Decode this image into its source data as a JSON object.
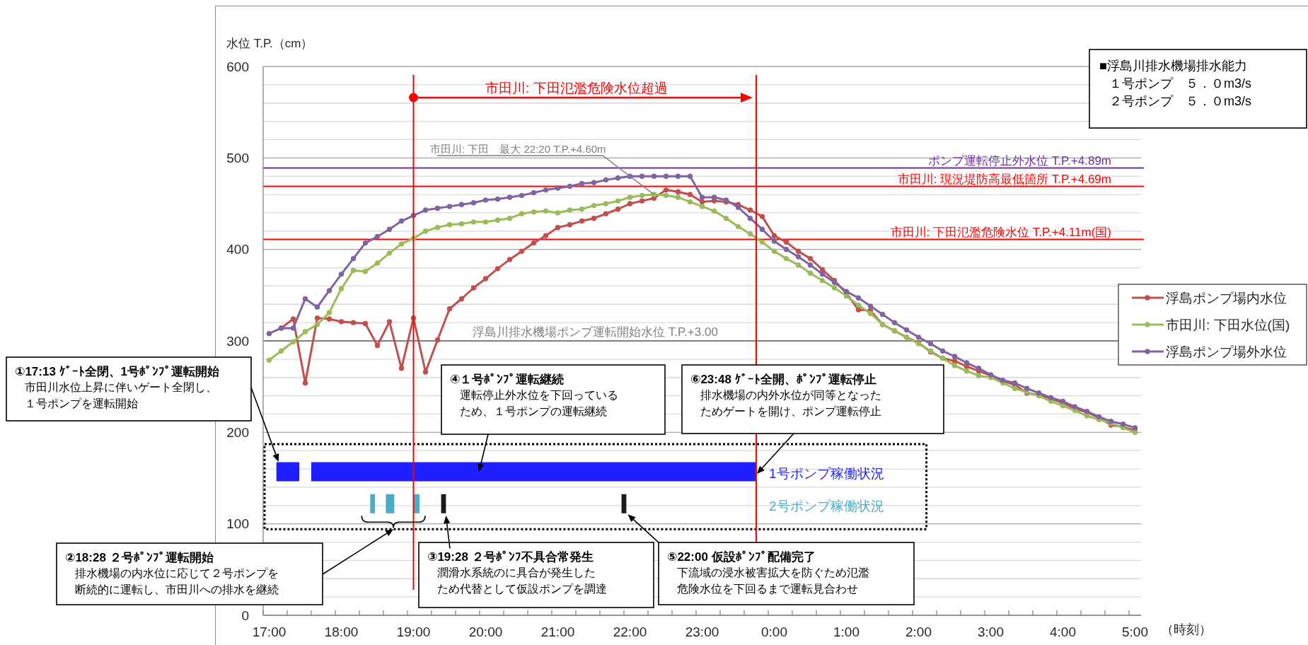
{
  "chart_data": {
    "type": "line",
    "xlabel": "（時刻）",
    "ylabel": "水位 T.P.（cm）",
    "x": [
      "2000-01-01T17:00",
      "2000-01-01T17:10",
      "2000-01-01T17:20",
      "2000-01-01T17:30",
      "2000-01-01T17:40",
      "2000-01-01T17:50",
      "2000-01-01T18:00",
      "2000-01-01T18:10",
      "2000-01-01T18:20",
      "2000-01-01T18:30",
      "2000-01-01T18:40",
      "2000-01-01T18:50",
      "2000-01-01T19:00",
      "2000-01-01T19:10",
      "2000-01-01T19:20",
      "2000-01-01T19:30",
      "2000-01-01T19:40",
      "2000-01-01T19:50",
      "2000-01-01T20:00",
      "2000-01-01T20:10",
      "2000-01-01T20:20",
      "2000-01-01T20:30",
      "2000-01-01T20:40",
      "2000-01-01T20:50",
      "2000-01-01T21:00",
      "2000-01-01T21:10",
      "2000-01-01T21:20",
      "2000-01-01T21:30",
      "2000-01-01T21:40",
      "2000-01-01T21:50",
      "2000-01-01T22:00",
      "2000-01-01T22:10",
      "2000-01-01T22:20",
      "2000-01-01T22:30",
      "2000-01-01T22:40",
      "2000-01-01T22:50",
      "2000-01-01T23:00",
      "2000-01-01T23:10",
      "2000-01-01T23:20",
      "2000-01-01T23:30",
      "2000-01-01T23:40",
      "2000-01-01T23:50",
      "2000-01-02T00:00",
      "2000-01-02T00:10",
      "2000-01-02T00:20",
      "2000-01-02T00:30",
      "2000-01-02T00:40",
      "2000-01-02T00:50",
      "2000-01-02T01:00",
      "2000-01-02T01:10",
      "2000-01-02T01:20",
      "2000-01-02T01:30",
      "2000-01-02T01:40",
      "2000-01-02T01:50",
      "2000-01-02T02:00",
      "2000-01-02T02:10",
      "2000-01-02T02:20",
      "2000-01-02T02:30",
      "2000-01-02T02:40",
      "2000-01-02T02:50",
      "2000-01-02T03:00",
      "2000-01-02T03:10",
      "2000-01-02T03:20",
      "2000-01-02T03:30",
      "2000-01-02T03:40",
      "2000-01-02T03:50",
      "2000-01-02T04:00",
      "2000-01-02T04:10",
      "2000-01-02T04:20",
      "2000-01-02T04:30",
      "2000-01-02T04:40",
      "2000-01-02T04:50",
      "2000-01-02T05:00"
    ],
    "series": [
      {
        "name": "浮島ポンプ場内水位",
        "color": "#c0504d",
        "values": [
          null,
          314,
          324,
          254,
          325,
          324,
          321,
          320,
          319,
          295,
          321,
          270,
          325,
          266,
          301,
          335,
          346,
          358,
          368,
          379,
          389,
          398,
          407,
          415,
          424,
          427,
          431,
          434,
          439,
          444,
          450,
          453,
          456,
          465,
          463,
          460,
          452,
          453,
          452,
          449,
          443,
          436,
          415,
          408,
          398,
          390,
          378,
          366,
          352,
          334,
          333,
          318,
          311,
          304,
          298,
          288,
          281,
          278,
          272,
          267,
          262,
          256,
          252,
          243,
          241,
          237,
          232,
          226,
          222,
          216,
          208,
          206,
          202
        ]
      },
      {
        "name": "市田川: 下田水位(国)",
        "color": "#9bbb59",
        "values": [
          279,
          289,
          299,
          310,
          318,
          331,
          357,
          377,
          376,
          385,
          396,
          406,
          412,
          420,
          424,
          427,
          428,
          430,
          430,
          432,
          434,
          439,
          441,
          442,
          440,
          443,
          444,
          448,
          450,
          453,
          457,
          459,
          460,
          459,
          457,
          452,
          447,
          442,
          434,
          425,
          417,
          408,
          398,
          390,
          383,
          374,
          366,
          358,
          349,
          339,
          330,
          318,
          311,
          304,
          297,
          289,
          281,
          273,
          267,
          262,
          260,
          254,
          248,
          244,
          240,
          234,
          229,
          224,
          218,
          214,
          210,
          205,
          200
        ]
      },
      {
        "name": "浮島ポンプ場外水位",
        "color": "#8064a2",
        "values": [
          308,
          314,
          314,
          346,
          337,
          355,
          373,
          390,
          407,
          414,
          422,
          431,
          437,
          443,
          445,
          447,
          449,
          451,
          454,
          455,
          457,
          459,
          462,
          465,
          467,
          469,
          472,
          473,
          476,
          478,
          480,
          480,
          480,
          480,
          480,
          480,
          457,
          457,
          454,
          446,
          434,
          422,
          409,
          400,
          392,
          383,
          373,
          364,
          354,
          347,
          338,
          329,
          320,
          312,
          304,
          297,
          289,
          283,
          276,
          270,
          263,
          257,
          254,
          248,
          243,
          238,
          234,
          228,
          223,
          217,
          212,
          209,
          205
        ]
      },
      {
        "name": "1号ポンプ稼働状況",
        "color": "#1f1fff",
        "marker": "none",
        "x": [
          "2000-01-01T17:06",
          "2000-01-01T17:25",
          null,
          "2000-01-01T17:35",
          "2000-01-01T23:45"
        ],
        "values": [
          157,
          157,
          null,
          157,
          157
        ]
      },
      {
        "name": "2号ポンプ稼働状況",
        "color": "#4bacc6",
        "marker": "none",
        "x": [
          "2000-01-01T18:24",
          "2000-01-01T18:28",
          null,
          "2000-01-01T18:37",
          "2000-01-01T18:44",
          null,
          "2000-01-01T19:00",
          "2000-01-01T19:05"
        ],
        "values": [
          122,
          122,
          null,
          122,
          122,
          null,
          122,
          122
        ]
      },
      {
        "color": "#1a1a1a",
        "marker": "none",
        "x": [
          "2000-01-01T19:23",
          "2000-01-01T19:27",
          null,
          "2000-01-01T21:53",
          "2000-01-01T21:57"
        ],
        "values": [
          122,
          122,
          null,
          122,
          122
        ]
      }
    ],
    "xlim": [
      "2000-01-01T16:55",
      "2000-01-02T05:05"
    ],
    "xticks": [
      {
        "value": "2000-01-01T17:00",
        "label": "17:00"
      },
      {
        "value": "2000-01-01T18:00",
        "label": "18:00"
      },
      {
        "value": "2000-01-01T19:00",
        "label": "19:00"
      },
      {
        "value": "2000-01-01T20:00",
        "label": "20:00"
      },
      {
        "value": "2000-01-01T21:00",
        "label": "21:00"
      },
      {
        "value": "2000-01-01T22:00",
        "label": "22:00"
      },
      {
        "value": "2000-01-01T23:00",
        "label": "23:00"
      },
      {
        "value": "2000-01-02T00:00",
        "label": "0:00"
      },
      {
        "value": "2000-01-02T01:00",
        "label": "1:00"
      },
      {
        "value": "2000-01-02T02:00",
        "label": "2:00"
      },
      {
        "value": "2000-01-02T03:00",
        "label": "3:00"
      },
      {
        "value": "2000-01-02T04:00",
        "label": "4:00"
      },
      {
        "value": "2000-01-02T05:00",
        "label": "5:00"
      },
      {
        "value": "2000-01-01T16:55",
        "label": null
      },
      {
        "value": "2000-01-01T17:15",
        "label": null
      },
      {
        "value": "2000-01-01T17:35",
        "label": null
      },
      {
        "value": "2000-01-01T17:55",
        "label": null
      },
      {
        "value": "2000-01-01T18:15",
        "label": null
      },
      {
        "value": "2000-01-01T18:35",
        "label": null
      },
      {
        "value": "2000-01-01T18:55",
        "label": null
      },
      {
        "value": "2000-01-01T19:15",
        "label": null
      },
      {
        "value": "2000-01-01T19:35",
        "label": null
      },
      {
        "value": "2000-01-01T19:55",
        "label": null
      },
      {
        "value": "2000-01-01T20:15",
        "label": null
      },
      {
        "value": "2000-01-01T20:35",
        "label": null
      },
      {
        "value": "2000-01-01T20:55",
        "label": null
      },
      {
        "value": "2000-01-01T21:15",
        "label": null
      },
      {
        "value": "2000-01-01T21:35",
        "label": null
      },
      {
        "value": "2000-01-01T21:55",
        "label": null
      },
      {
        "value": "2000-01-01T22:15",
        "label": null
      },
      {
        "value": "2000-01-01T22:35",
        "label": null
      },
      {
        "value": "2000-01-01T22:55",
        "label": null
      },
      {
        "value": "2000-01-01T23:15",
        "label": null
      },
      {
        "value": "2000-01-01T23:35",
        "label": null
      },
      {
        "value": "2000-01-01T23:55",
        "label": null
      },
      {
        "value": "2000-01-02T00:15",
        "label": null
      },
      {
        "value": "2000-01-02T00:35",
        "label": null
      },
      {
        "value": "2000-01-02T00:55",
        "label": null
      },
      {
        "value": "2000-01-02T01:15",
        "label": null
      },
      {
        "value": "2000-01-02T01:35",
        "label": null
      },
      {
        "value": "2000-01-02T01:55",
        "label": null
      },
      {
        "value": "2000-01-02T02:15",
        "label": null
      },
      {
        "value": "2000-01-02T02:35",
        "label": null
      },
      {
        "value": "2000-01-02T02:55",
        "label": null
      },
      {
        "value": "2000-01-02T03:15",
        "label": null
      },
      {
        "value": "2000-01-02T03:35",
        "label": null
      },
      {
        "value": "2000-01-02T03:55",
        "label": null
      },
      {
        "value": "2000-01-02T04:15",
        "label": null
      },
      {
        "value": "2000-01-02T04:35",
        "label": null
      },
      {
        "value": "2000-01-02T04:55",
        "label": null
      }
    ],
    "ylim": [
      0,
      600
    ],
    "yticks": [
      0,
      {
        "value": 20,
        "label": null
      },
      {
        "value": 40,
        "label": null
      },
      {
        "value": 60,
        "label": null
      },
      {
        "value": 80,
        "label": null
      },
      100,
      {
        "value": 120,
        "label": null
      },
      {
        "value": 140,
        "label": null
      },
      {
        "value": 160,
        "label": null
      },
      {
        "value": 180,
        "label": null
      },
      200,
      {
        "value": 220,
        "label": null
      },
      {
        "value": 240,
        "label": null
      },
      {
        "value": 260,
        "label": null
      },
      {
        "value": 280,
        "label": null
      },
      300,
      {
        "value": 320,
        "label": null
      },
      {
        "value": 340,
        "label": null
      },
      {
        "value": 360,
        "label": null
      },
      {
        "value": 380,
        "label": null
      },
      400,
      {
        "value": 420,
        "label": null
      },
      {
        "value": 440,
        "label": null
      },
      {
        "value": 460,
        "label": null
      },
      {
        "value": 480,
        "label": null
      },
      500,
      {
        "value": 520,
        "label": null
      },
      {
        "value": 540,
        "label": null
      },
      {
        "value": 560,
        "label": null
      },
      {
        "value": 580,
        "label": null
      },
      600
    ],
    "ref_lines": [
      {
        "axis": "y",
        "value": 489,
        "label": "ポンプ運転停止外水位 T.P.+4.89m",
        "color": "#7030a0"
      },
      {
        "axis": "y",
        "value": 469,
        "label": "市田川: 現況堤防高最低箇所 T.P.+4.69m",
        "color": "#ff0000"
      },
      {
        "axis": "y",
        "value": 411,
        "label": "市田川: 下田氾濫危険水位 T.P.+4.11m(国)",
        "color": "#ff0000"
      },
      {
        "axis": "y",
        "value": 300,
        "label": "浮島川排水機場ポンプ運転開始水位 T.P.+3.00",
        "color": "#808080"
      },
      {
        "axis": "x",
        "value": "2000-01-01T19:00",
        "label": "市田川: 下田氾濫危険水位超過",
        "color": "#ff0000"
      },
      {
        "axis": "x",
        "value": "2000-01-01T23:45",
        "color": "#ff0000"
      }
    ],
    "annotations": [
      {
        "text": "市田川: 下田　最大 22:20 T.P.+4.60m",
        "x": "2000-01-01T22:20",
        "y": 460
      },
      "①17:13 ｹﾞｰﾄ全閉、1号ﾎﾟﾝﾌﾟ運転開始",
      "市田川水位上昇に伴いゲート全閉し、１号ポンプを運転開始",
      "②18:28 ２号ﾎﾟﾝﾌﾟ運転開始",
      "排水機場の内水位に応じて２号ポンプを断続的に運転し、市田川への排水を継続",
      {
        "text": "③19:28 ２号ﾎﾟﾝﾌ不具合常発生",
        "x": "2000-01-01T19:27",
        "y": 109
      },
      "潤滑水系統のに具合が発生したため代替として仮設ポンプを調達",
      "④１号ﾎﾟﾝﾌﾟ運転継続",
      "運転停止外水位を下回っているため、１号ポンプの運転継続",
      "⑤22:00 仮設ﾎﾟﾝﾌﾟ配備完了",
      "下流域の浸水被害拡大を防ぐため氾濫危険水位を下回るまで運転見合わせ",
      "⑥23:48 ｹﾞｰﾄ全開、ﾎﾟﾝﾌﾟ運転停止",
      "排水機場の内外水位が同等となったためゲートを開け、ポンプ運転停止",
      "■浮島川排水機場排水能力",
      "１号ポンプ　５．０m3/s",
      "２号ポンプ　５．０m3/s"
    ],
    "grid": "y",
    "legend": "right",
    "marker": "circle"
  }
}
